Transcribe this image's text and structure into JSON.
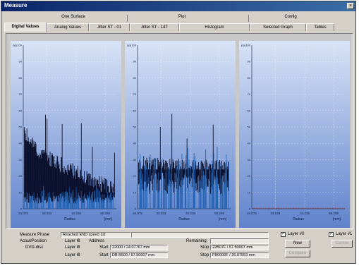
{
  "window": {
    "title": "Measure",
    "close_glyph": "×"
  },
  "tab_groups": [
    {
      "label": "One Surface"
    },
    {
      "label": "Plot"
    },
    {
      "label": "Config"
    }
  ],
  "tabs": [
    {
      "label": "Digital Values",
      "active": true
    },
    {
      "label": "Analog Values",
      "active": false
    },
    {
      "label": "Jitter ST - 01",
      "active": false
    },
    {
      "label": "Jitter ST - 14T",
      "active": false
    },
    {
      "label": "Histogram",
      "active": false
    },
    {
      "label": "Selected Graph",
      "active": false
    },
    {
      "label": "Tables",
      "active": false
    }
  ],
  "chart_data": [
    {
      "type": "bar",
      "unit_label": "nm",
      "xlabel": "Radius",
      "x_unit": "[mm]",
      "x_ticks": [
        "24.075",
        "33.033",
        "44.236",
        "55.208"
      ],
      "y_ticks": [
        "0",
        "10",
        "20",
        "30",
        "40",
        "50",
        "60",
        "70",
        "80",
        "90",
        "100"
      ],
      "ylim": [
        0,
        100
      ],
      "xlim": [
        24.075,
        59.5
      ],
      "profile": {
        "start": 50,
        "end": 12,
        "base": 8,
        "spike_max": 65
      },
      "grid": true
    },
    {
      "type": "bar",
      "unit_label": "nm",
      "xlabel": "Radius",
      "x_unit": "[mm]",
      "x_ticks": [
        "24.075",
        "33.033",
        "44.236",
        "55.208"
      ],
      "y_ticks": [
        "0",
        "10",
        "20",
        "30",
        "40",
        "50",
        "60",
        "70",
        "80",
        "90",
        "100"
      ],
      "ylim": [
        0,
        100
      ],
      "xlim": [
        24.075,
        59.5
      ],
      "profile": {
        "start": 28,
        "end": 25,
        "base": 22,
        "spike_max": 58
      },
      "grid": true
    },
    {
      "type": "line",
      "unit_label": "nm",
      "xlabel": "Radius",
      "x_unit": "[mm]",
      "x_ticks": [
        "24.075",
        "33.033",
        "44.236",
        "55.208"
      ],
      "y_ticks": [
        "0",
        "10",
        "20",
        "30",
        "40",
        "50",
        "60",
        "70",
        "80",
        "90",
        "100"
      ],
      "ylim": [
        0,
        100
      ],
      "xlim": [
        24.075,
        59.5
      ],
      "series": [
        {
          "y_value": 0
        }
      ],
      "grid": true
    }
  ],
  "status": {
    "measure_phase_label": "Measure Phase",
    "measure_phase_value": "Reached END speed 1st",
    "actual_position_label": "ActualPosition",
    "dvd_disc_label": "DVD-disc",
    "layer_a_label": "Layer #:",
    "layer_a_value": "0",
    "layer_b_label": "Layer #:",
    "layer_b_value": "0",
    "layer_c_label": "Layer #:",
    "layer_c_value": "0",
    "address_label": "Address",
    "start_a_label": "Start",
    "start_a_value": "22000 / 24.07767 mm",
    "start_b_label": "Start",
    "start_b_value": "DB B500 / 57.50007 mm",
    "remaining_label": "Remaining",
    "stop_a_label": "Stop",
    "stop_a_value": "22B07F / 57.50007 mm",
    "stop_b_label": "Stop",
    "stop_b_value": "FB0000F / 26.07553 mm"
  },
  "options": {
    "layer0_label": "Layer #0",
    "layer0_checked": true,
    "layer1_label": "Layer #1",
    "layer1_checked": true,
    "new_button": "New",
    "cancel_button": "Cancel",
    "compare_button": "Compare"
  },
  "colors": {
    "plot_top": "#d8e3f6",
    "plot_bottom": "#5f82cc",
    "bar_dark": "#0a0f2a",
    "bar_blue": "#2666b5",
    "baseline_red": "#d04040"
  }
}
